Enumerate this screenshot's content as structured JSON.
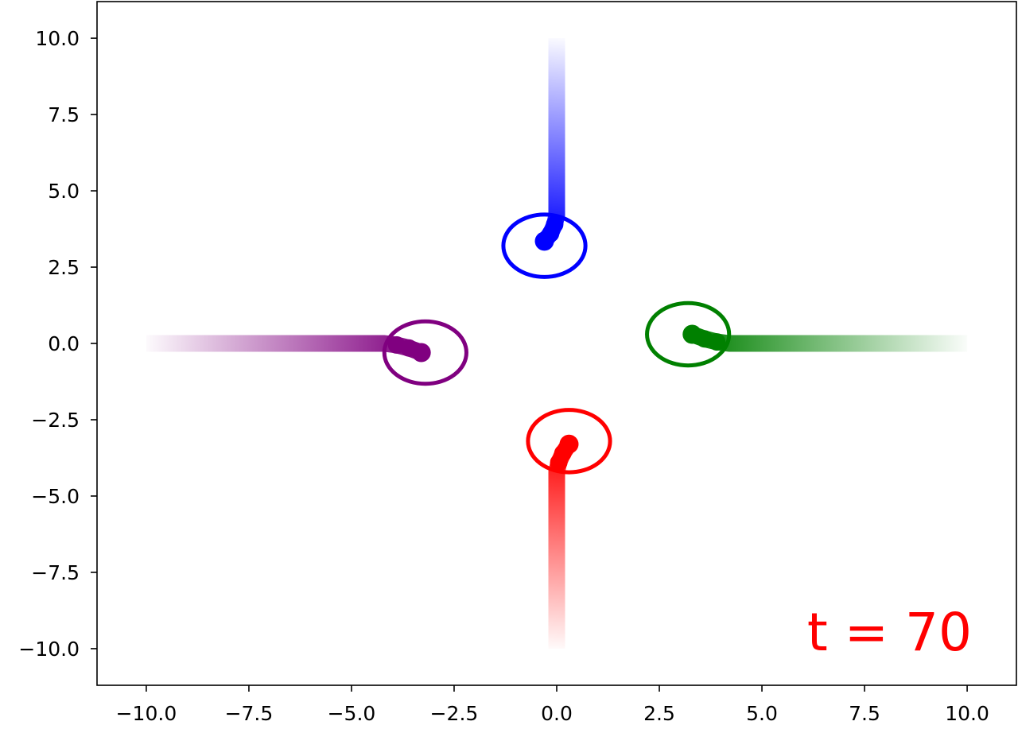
{
  "chart_data": {
    "type": "scatter",
    "title": "",
    "xlabel": "",
    "ylabel": "",
    "xlim": [
      -11.2,
      11.2
    ],
    "ylim": [
      -11.2,
      11.2
    ],
    "grid": false,
    "legend": "none",
    "x_ticks": [
      -10.0,
      -7.5,
      -5.0,
      -2.5,
      0.0,
      2.5,
      5.0,
      7.5,
      10.0
    ],
    "x_tick_labels": [
      "−10.0",
      "−7.5",
      "−5.0",
      "−2.5",
      "0.0",
      "2.5",
      "5.0",
      "7.5",
      "10.0"
    ],
    "y_ticks": [
      10.0,
      7.5,
      5.0,
      2.5,
      0.0,
      -2.5,
      -5.0,
      -7.5,
      -10.0
    ],
    "y_tick_labels": [
      "10.0",
      "7.5",
      "5.0",
      "2.5",
      "0.0",
      "−2.5",
      "−5.0",
      "−7.5",
      "−10.0"
    ],
    "series": [
      {
        "color": "#0000ff",
        "trail_start": [
          0.0,
          10.0
        ],
        "trail_path": [
          [
            0.0,
            10.0
          ],
          [
            0.0,
            4.2
          ],
          [
            -0.05,
            3.9
          ],
          [
            -0.15,
            3.6
          ],
          [
            -0.3,
            3.35
          ]
        ],
        "position": [
          -0.3,
          3.35
        ],
        "circle": {
          "center": [
            -0.3,
            3.2
          ],
          "rx": 1.0,
          "ry": 1.0
        }
      },
      {
        "color": "#008000",
        "trail_start": [
          10.0,
          0.0
        ],
        "trail_path": [
          [
            10.0,
            0.0
          ],
          [
            4.2,
            0.0
          ],
          [
            3.9,
            0.05
          ],
          [
            3.6,
            0.15
          ],
          [
            3.3,
            0.3
          ]
        ],
        "position": [
          3.3,
          0.3
        ],
        "circle": {
          "center": [
            3.2,
            0.3
          ],
          "rx": 1.0,
          "ry": 1.0
        }
      },
      {
        "color": "#ff0000",
        "trail_start": [
          0.0,
          -10.0
        ],
        "trail_path": [
          [
            0.0,
            -10.0
          ],
          [
            0.0,
            -4.2
          ],
          [
            0.05,
            -3.9
          ],
          [
            0.15,
            -3.6
          ],
          [
            0.3,
            -3.3
          ]
        ],
        "position": [
          0.3,
          -3.3
        ],
        "circle": {
          "center": [
            0.3,
            -3.2
          ],
          "rx": 1.0,
          "ry": 1.0
        }
      },
      {
        "color": "#800080",
        "trail_start": [
          -10.0,
          0.0
        ],
        "trail_path": [
          [
            -10.0,
            0.0
          ],
          [
            -4.2,
            0.0
          ],
          [
            -3.9,
            -0.05
          ],
          [
            -3.6,
            -0.15
          ],
          [
            -3.3,
            -0.3
          ]
        ],
        "position": [
          -3.3,
          -0.3
        ],
        "circle": {
          "center": [
            -3.2,
            -0.3
          ],
          "rx": 1.0,
          "ry": 1.0
        }
      }
    ],
    "annotation": {
      "text": "t = 70",
      "color": "#ff0000"
    }
  }
}
